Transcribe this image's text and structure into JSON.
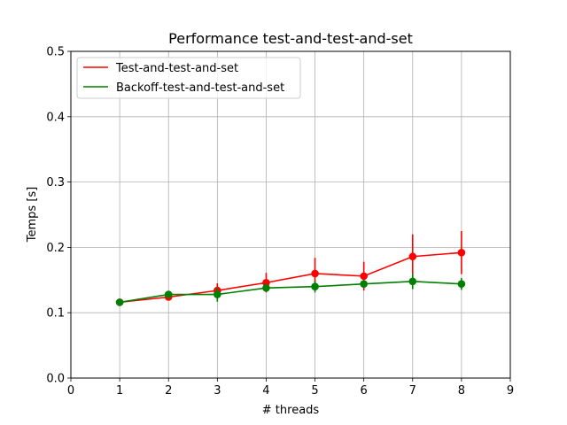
{
  "chart_data": {
    "type": "line",
    "title": "Performance test-and-test-and-set",
    "xlabel": "# threads",
    "ylabel": "Temps [s]",
    "xlim": [
      0,
      9
    ],
    "ylim": [
      0,
      0.5
    ],
    "xticks": [
      "0",
      "1",
      "2",
      "3",
      "4",
      "5",
      "6",
      "7",
      "8",
      "9"
    ],
    "yticks": [
      "0.0",
      "0.1",
      "0.2",
      "0.3",
      "0.4",
      "0.5"
    ],
    "grid": true,
    "legend_position": "upper-left",
    "x": [
      1,
      2,
      3,
      4,
      5,
      6,
      7,
      8
    ],
    "series": [
      {
        "name": "Test-and-test-and-set",
        "color": "#ff0000",
        "values": [
          0.116,
          0.124,
          0.134,
          0.146,
          0.16,
          0.156,
          0.186,
          0.192
        ],
        "error": [
          0.003,
          0.004,
          0.011,
          0.015,
          0.024,
          0.022,
          0.034,
          0.033
        ]
      },
      {
        "name": "Backoff-test-and-test-and-set",
        "color": "#008000",
        "values": [
          0.116,
          0.128,
          0.128,
          0.138,
          0.14,
          0.144,
          0.148,
          0.144
        ],
        "error": [
          0.003,
          0.004,
          0.011,
          0.006,
          0.009,
          0.005,
          0.012,
          0.009
        ]
      }
    ]
  }
}
